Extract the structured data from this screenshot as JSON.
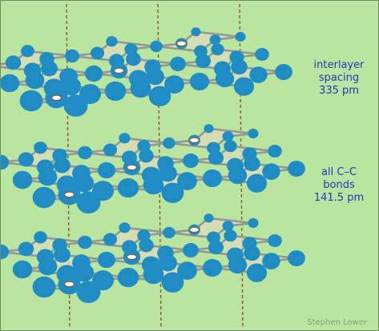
{
  "labels": {
    "spacing_line1": "interlayer",
    "spacing_line2": "spacing",
    "spacing_value": "335 pm",
    "bonds_line1": "all C–C",
    "bonds_line2": "bonds",
    "bonds_value": "141.5 pm"
  },
  "credit": "Stephen Lower",
  "colors": {
    "background": "#b9e5a0",
    "sheet_fill": "#d9dcb6",
    "bond": "#8f9a94",
    "atom": "#1f8dc4",
    "axis_line": "#8a5a2e",
    "axis_marker": "#ffffff",
    "text": "#2a33b8"
  },
  "structure": {
    "layers": 3,
    "rows_per_layer": 3,
    "hexagon_columns": 3,
    "axis_lines": 3
  }
}
